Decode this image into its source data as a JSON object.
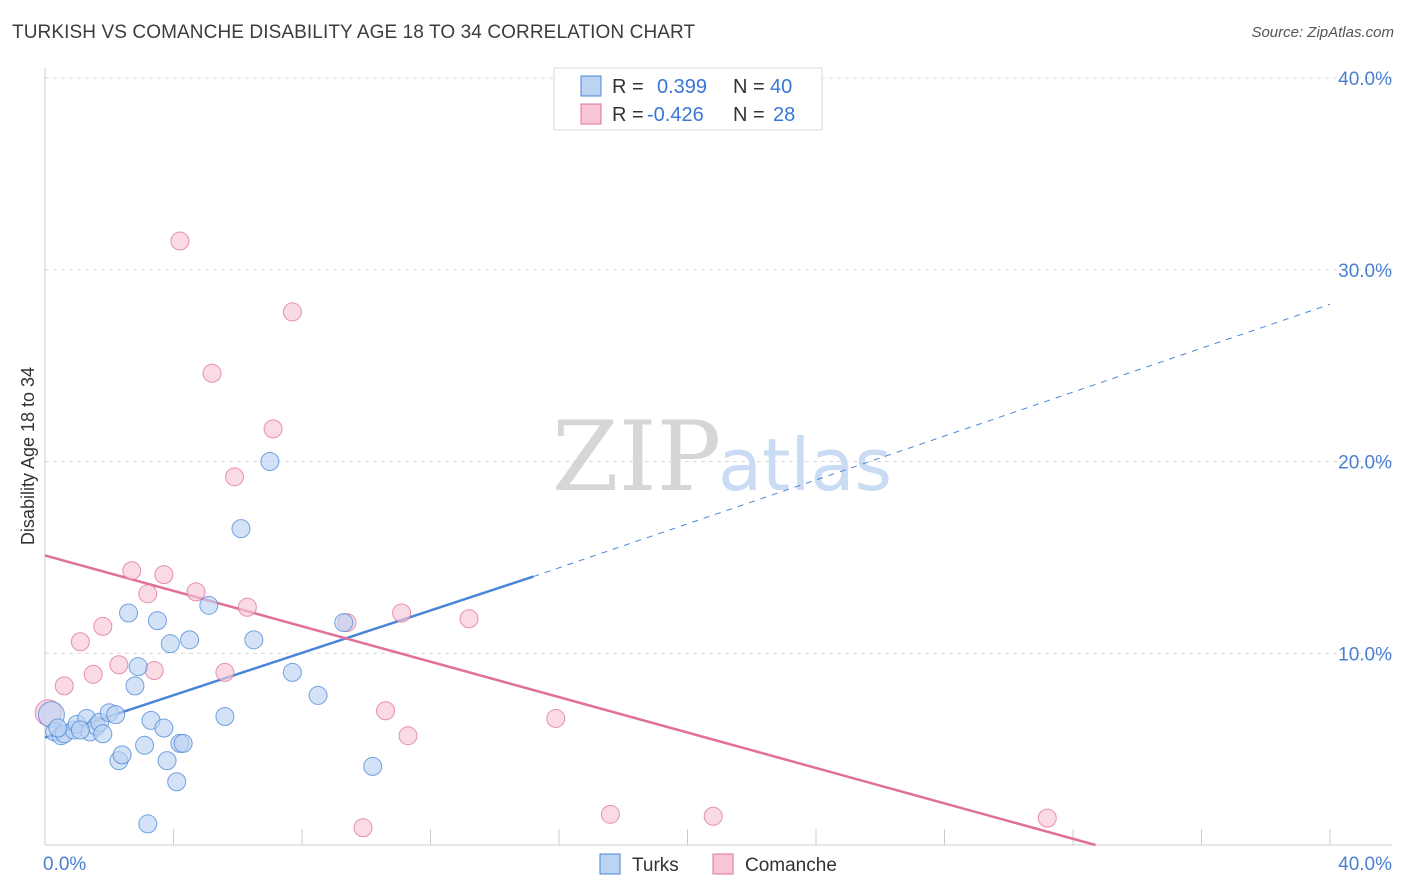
{
  "header": {
    "title": "TURKISH VS COMANCHE DISABILITY AGE 18 TO 34 CORRELATION CHART",
    "source": "Source: ZipAtlas.com"
  },
  "watermark": {
    "zip": "ZIP",
    "atlas": "atlas"
  },
  "legend": {
    "rows": [
      {
        "r_label": "R =",
        "r_value": "0.399",
        "n_label": "N =",
        "n_value": "40",
        "color": "#aecbf2"
      },
      {
        "r_label": "R =",
        "r_value": "-0.426",
        "n_label": "N =",
        "n_value": "28",
        "color": "#f7bfd0"
      }
    ]
  },
  "chart_data": {
    "type": "scatter",
    "title": "TURKISH VS COMANCHE DISABILITY AGE 18 TO 34 CORRELATION CHART",
    "xlabel": "",
    "ylabel": "Disability Age 18 to 34",
    "xlim": [
      0,
      40
    ],
    "ylim": [
      0,
      40
    ],
    "x_tick_labels": [
      "0.0%",
      "40.0%"
    ],
    "y_tick_labels": [
      "10.0%",
      "20.0%",
      "30.0%",
      "40.0%"
    ],
    "y_ticks": [
      10,
      20,
      30,
      40
    ],
    "x_minor_ticks": [
      4,
      8,
      12,
      16,
      20,
      24,
      28,
      32,
      36,
      40
    ],
    "series": [
      {
        "name": "Turks",
        "color": "#4a86d8",
        "fill": "#bcd3f1",
        "r": 0.399,
        "n": 40,
        "trend": {
          "x0": 0,
          "y0": 5.6,
          "x1": 15.2,
          "y1": 14.0,
          "x_dash_end": 40,
          "y_dash_end": 28.2
        },
        "points": [
          [
            0.2,
            6.8
          ],
          [
            0.3,
            5.9
          ],
          [
            0.5,
            5.7
          ],
          [
            0.6,
            5.8
          ],
          [
            0.9,
            6.0
          ],
          [
            1.0,
            6.3
          ],
          [
            1.3,
            6.6
          ],
          [
            1.4,
            5.9
          ],
          [
            1.6,
            6.2
          ],
          [
            1.7,
            6.4
          ],
          [
            1.8,
            5.8
          ],
          [
            2.0,
            6.9
          ],
          [
            2.2,
            6.8
          ],
          [
            2.3,
            4.4
          ],
          [
            2.4,
            4.7
          ],
          [
            2.6,
            12.1
          ],
          [
            2.8,
            8.3
          ],
          [
            2.9,
            9.3
          ],
          [
            3.1,
            5.2
          ],
          [
            3.2,
            1.1
          ],
          [
            3.3,
            6.5
          ],
          [
            3.5,
            11.7
          ],
          [
            3.7,
            6.1
          ],
          [
            3.8,
            4.4
          ],
          [
            3.9,
            10.5
          ],
          [
            4.1,
            3.3
          ],
          [
            4.2,
            5.3
          ],
          [
            4.3,
            5.3
          ],
          [
            4.5,
            10.7
          ],
          [
            5.1,
            12.5
          ],
          [
            5.6,
            6.7
          ],
          [
            6.1,
            16.5
          ],
          [
            6.5,
            10.7
          ],
          [
            7.0,
            20.0
          ],
          [
            7.7,
            9.0
          ],
          [
            8.5,
            7.8
          ],
          [
            9.3,
            11.6
          ],
          [
            10.2,
            4.1
          ],
          [
            0.4,
            6.1
          ],
          [
            1.1,
            6.0
          ]
        ]
      },
      {
        "name": "Comanche",
        "color": "#e0709a",
        "fill": "#f8c6d6",
        "r": -0.426,
        "n": 28,
        "trend": {
          "x0": 0,
          "y0": 15.1,
          "x1": 32.7,
          "y1": 0
        },
        "points": [
          [
            0.1,
            6.9
          ],
          [
            0.6,
            8.3
          ],
          [
            1.1,
            10.6
          ],
          [
            1.5,
            8.9
          ],
          [
            1.8,
            11.4
          ],
          [
            2.3,
            9.4
          ],
          [
            2.7,
            14.3
          ],
          [
            3.2,
            13.1
          ],
          [
            3.4,
            9.1
          ],
          [
            3.7,
            14.1
          ],
          [
            4.2,
            31.5
          ],
          [
            4.7,
            13.2
          ],
          [
            5.2,
            24.6
          ],
          [
            5.6,
            9.0
          ],
          [
            5.9,
            19.2
          ],
          [
            6.3,
            12.4
          ],
          [
            7.1,
            21.7
          ],
          [
            7.7,
            27.8
          ],
          [
            9.4,
            11.6
          ],
          [
            9.9,
            0.9
          ],
          [
            10.6,
            7.0
          ],
          [
            11.1,
            12.1
          ],
          [
            11.3,
            5.7
          ],
          [
            13.2,
            11.8
          ],
          [
            15.9,
            6.6
          ],
          [
            17.6,
            1.6
          ],
          [
            20.8,
            1.5
          ],
          [
            31.2,
            1.4
          ]
        ]
      }
    ]
  }
}
